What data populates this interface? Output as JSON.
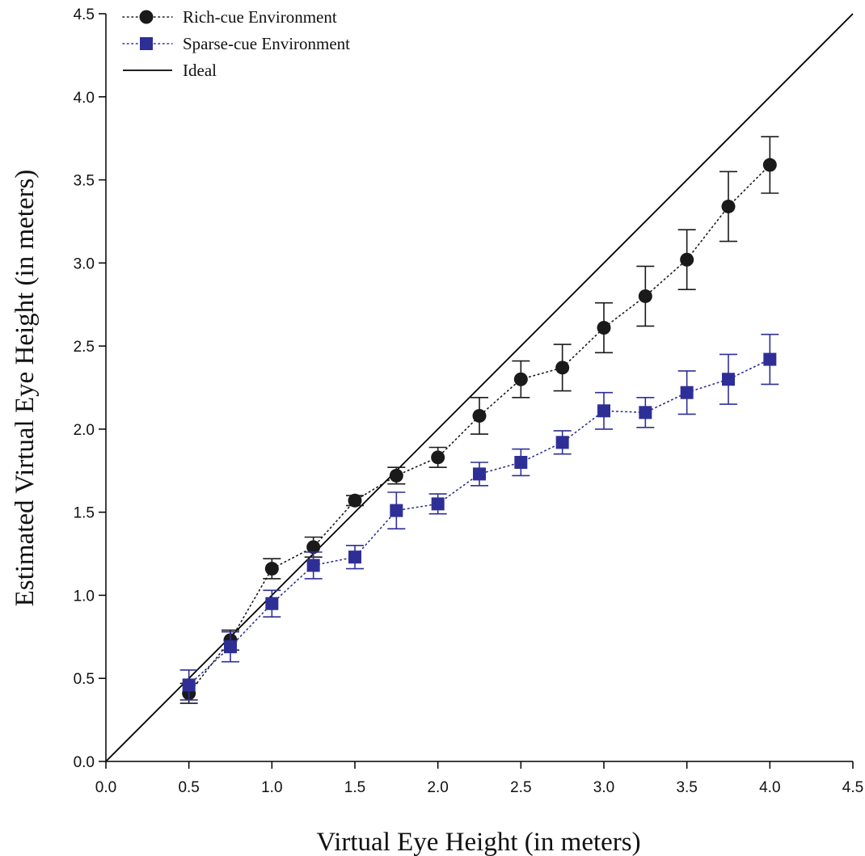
{
  "chart_data": {
    "type": "scatter",
    "xlabel": "Virtual Eye Height (in meters)",
    "ylabel": "Estimated Virtual Eye Height (in meters)",
    "xlim": [
      0,
      4.5
    ],
    "ylim": [
      0,
      4.5
    ],
    "xticks": [
      "0.0",
      "0.5",
      "1.0",
      "1.5",
      "2.0",
      "2.5",
      "3.0",
      "3.5",
      "4.0",
      "4.5"
    ],
    "yticks": [
      "0.0",
      "0.5",
      "1.0",
      "1.5",
      "2.0",
      "2.5",
      "3.0",
      "3.5",
      "4.0",
      "4.5"
    ],
    "grid": false,
    "legend_position": "top-left",
    "series": [
      {
        "name": "Rich-cue Environment",
        "marker": "circle",
        "line": "dotted",
        "color": "#1a1a1a",
        "x": [
          0.5,
          0.75,
          1.0,
          1.25,
          1.5,
          1.75,
          2.0,
          2.25,
          2.5,
          2.75,
          3.0,
          3.25,
          3.5,
          3.75,
          4.0
        ],
        "y": [
          0.41,
          0.73,
          1.16,
          1.29,
          1.57,
          1.72,
          1.83,
          2.08,
          2.3,
          2.37,
          2.61,
          2.8,
          3.02,
          3.34,
          3.59
        ],
        "err": [
          0.06,
          0.06,
          0.06,
          0.06,
          0.03,
          0.05,
          0.06,
          0.11,
          0.11,
          0.14,
          0.15,
          0.18,
          0.18,
          0.21,
          0.17
        ]
      },
      {
        "name": "Sparse-cue Environment",
        "marker": "square",
        "line": "dotted",
        "color": "#2e2f96",
        "x": [
          0.5,
          0.75,
          1.0,
          1.25,
          1.5,
          1.75,
          2.0,
          2.25,
          2.5,
          2.75,
          3.0,
          3.25,
          3.5,
          3.75,
          4.0
        ],
        "y": [
          0.46,
          0.69,
          0.95,
          1.18,
          1.23,
          1.51,
          1.55,
          1.73,
          1.8,
          1.92,
          2.11,
          2.1,
          2.22,
          2.3,
          2.42
        ],
        "err": [
          0.09,
          0.09,
          0.08,
          0.08,
          0.07,
          0.11,
          0.06,
          0.07,
          0.08,
          0.07,
          0.11,
          0.09,
          0.13,
          0.15,
          0.15
        ]
      },
      {
        "name": "Ideal",
        "line": "solid",
        "color": "#000000",
        "x": [
          0,
          4.5
        ],
        "y": [
          0,
          4.5
        ]
      }
    ]
  }
}
